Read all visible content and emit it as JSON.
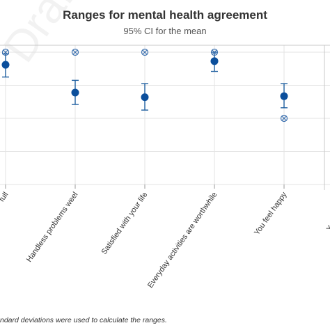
{
  "colors": {
    "point": "#0b4f9c",
    "errorbar": "#1f5fa0",
    "outlier": "#3a6fae",
    "grid": "#e3e3e3",
    "frame": "#c8c8c8",
    "text": "#333333"
  },
  "watermark_text": "Draft",
  "chart_data": {
    "type": "scatter",
    "title": "Ranges for mental health agreement",
    "subtitle": "95% CI for the mean",
    "footnote": "ndard deviations were used to calculate the ranges.",
    "grid": true,
    "ylim": [
      0,
      4
    ],
    "categories": [
      "full",
      "Handless problems weel",
      "Satisfied with your life",
      "Everyday activities are worthwhile",
      "You feel happy",
      "You don't feel"
    ],
    "series": [
      {
        "kind": "mean",
        "values": [
          3.62,
          2.78,
          2.64,
          3.73,
          2.67,
          null
        ]
      },
      {
        "kind": "ci_upper",
        "values": [
          3.95,
          3.15,
          3.05,
          4.0,
          3.05,
          null
        ]
      },
      {
        "kind": "ci_lower",
        "values": [
          3.25,
          2.42,
          2.25,
          3.42,
          2.32,
          null
        ]
      },
      {
        "kind": "max_marker",
        "values": [
          4.0,
          4.0,
          4.0,
          4.0,
          null,
          null
        ]
      },
      {
        "kind": "min_marker",
        "values": [
          null,
          null,
          null,
          null,
          2.0,
          null
        ]
      }
    ]
  }
}
